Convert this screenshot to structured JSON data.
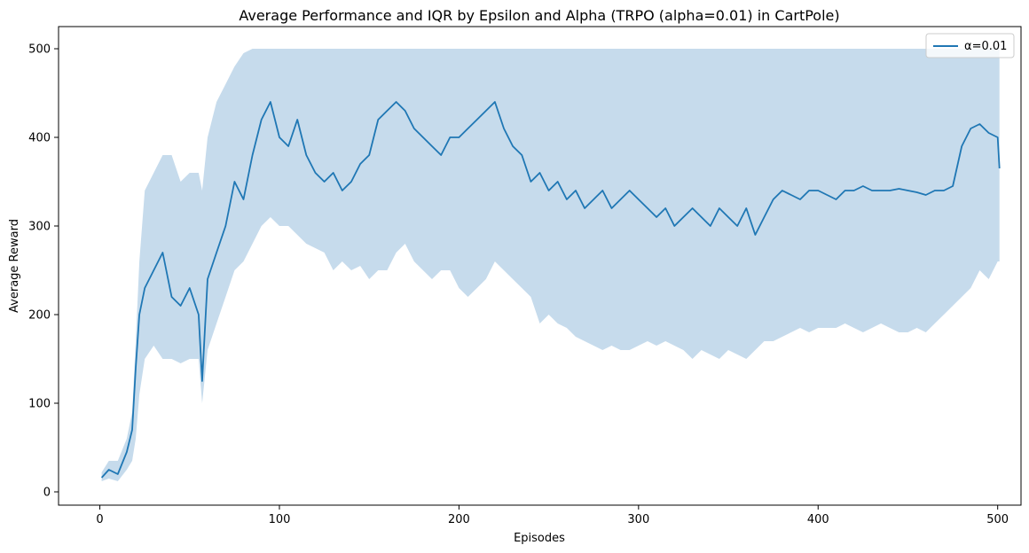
{
  "chart_data": {
    "type": "line",
    "title": "Average Performance and IQR by Epsilon and Alpha (TRPO (alpha=0.01) in CartPole)",
    "xlabel": "Episodes",
    "ylabel": "Average Reward",
    "xlim": [
      -23,
      513
    ],
    "ylim": [
      -15,
      525
    ],
    "xticks": [
      0,
      100,
      200,
      300,
      400,
      500
    ],
    "yticks": [
      0,
      100,
      200,
      300,
      400,
      500
    ],
    "grid": false,
    "legend_position": "top-right",
    "series": [
      {
        "name": "α=0.01",
        "color": "#1f77b4",
        "band_color": "#c6dbec",
        "x": [
          1,
          5,
          10,
          15,
          18,
          20,
          22,
          25,
          30,
          35,
          40,
          45,
          50,
          55,
          57,
          60,
          65,
          70,
          75,
          80,
          85,
          90,
          95,
          100,
          105,
          110,
          115,
          120,
          125,
          130,
          135,
          140,
          145,
          150,
          155,
          160,
          165,
          170,
          175,
          180,
          185,
          190,
          195,
          200,
          205,
          210,
          215,
          220,
          225,
          230,
          235,
          240,
          245,
          250,
          255,
          260,
          265,
          270,
          275,
          280,
          285,
          290,
          295,
          300,
          305,
          310,
          315,
          320,
          325,
          330,
          335,
          340,
          345,
          350,
          355,
          360,
          365,
          370,
          375,
          380,
          385,
          390,
          395,
          400,
          405,
          410,
          415,
          420,
          425,
          430,
          435,
          440,
          445,
          450,
          455,
          460,
          465,
          470,
          475,
          480,
          485,
          490,
          495,
          500,
          501
        ],
        "mean": [
          16,
          25,
          20,
          45,
          70,
          140,
          200,
          230,
          250,
          270,
          220,
          210,
          230,
          200,
          125,
          240,
          270,
          300,
          350,
          330,
          380,
          420,
          440,
          400,
          390,
          420,
          380,
          360,
          350,
          360,
          340,
          350,
          370,
          380,
          420,
          430,
          440,
          430,
          410,
          400,
          390,
          380,
          400,
          400,
          410,
          420,
          430,
          440,
          410,
          390,
          380,
          350,
          360,
          340,
          350,
          330,
          340,
          320,
          330,
          340,
          320,
          330,
          340,
          330,
          320,
          310,
          320,
          300,
          310,
          320,
          310,
          300,
          320,
          310,
          300,
          320,
          290,
          310,
          330,
          340,
          335,
          330,
          340,
          340,
          335,
          330,
          340,
          340,
          345,
          340,
          340,
          340,
          342,
          340,
          338,
          335,
          340,
          340,
          345,
          390,
          410,
          415,
          405,
          400,
          365
        ],
        "q1": [
          12,
          15,
          12,
          25,
          35,
          60,
          110,
          150,
          165,
          150,
          150,
          145,
          150,
          150,
          100,
          160,
          190,
          220,
          250,
          260,
          280,
          300,
          310,
          300,
          300,
          290,
          280,
          275,
          270,
          250,
          260,
          250,
          255,
          240,
          250,
          250,
          270,
          280,
          260,
          250,
          240,
          250,
          250,
          230,
          220,
          230,
          240,
          260,
          250,
          240,
          230,
          220,
          190,
          200,
          190,
          185,
          175,
          170,
          165,
          160,
          165,
          160,
          160,
          165,
          170,
          165,
          170,
          165,
          160,
          150,
          160,
          155,
          150,
          160,
          155,
          150,
          160,
          170,
          170,
          175,
          180,
          185,
          180,
          185,
          185,
          185,
          190,
          185,
          180,
          185,
          190,
          185,
          180,
          180,
          185,
          180,
          190,
          200,
          210,
          220,
          230,
          250,
          240,
          260,
          260
        ],
        "q3": [
          22,
          35,
          35,
          60,
          90,
          170,
          260,
          340,
          360,
          380,
          380,
          350,
          360,
          360,
          340,
          400,
          440,
          460,
          480,
          495,
          500,
          500,
          500,
          500,
          500,
          500,
          500,
          500,
          500,
          500,
          500,
          500,
          500,
          500,
          500,
          500,
          500,
          500,
          500,
          500,
          500,
          500,
          500,
          500,
          500,
          500,
          500,
          500,
          500,
          500,
          500,
          500,
          500,
          500,
          500,
          500,
          500,
          500,
          500,
          500,
          500,
          500,
          500,
          500,
          500,
          500,
          500,
          500,
          500,
          500,
          500,
          500,
          500,
          500,
          500,
          500,
          500,
          500,
          500,
          500,
          500,
          500,
          500,
          500,
          500,
          500,
          500,
          500,
          500,
          500,
          500,
          500,
          500,
          500,
          500,
          500,
          500,
          500,
          500,
          500,
          500,
          500,
          500,
          500,
          500
        ]
      }
    ]
  }
}
